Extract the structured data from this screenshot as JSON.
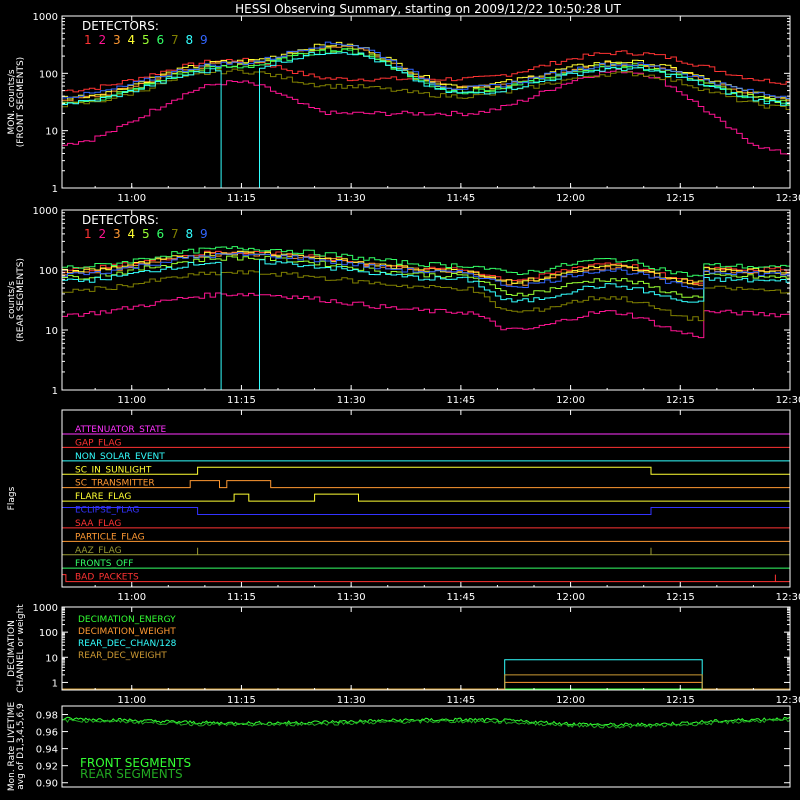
{
  "title": "HESSI Observing Summary, starting on 2009/12/22 10:50:28 UT",
  "colors": {
    "det": [
      "#ff2a2a",
      "#ff3f3f",
      "#ff9933",
      "#ffff33",
      "#99ff33",
      "#33ff66",
      "#33cc33",
      "#33ffff",
      "#3366ff",
      "#5555ff"
    ],
    "axis": "#ffffff"
  },
  "chart_data": [
    {
      "type": "line",
      "ylabel": [
        "MON. counts/s",
        "(FRONT SEGMENTS)"
      ],
      "yscale": "log",
      "ylim": [
        1,
        1000
      ],
      "yticks": [
        "1",
        "10",
        "100",
        "1000"
      ],
      "xlim": [
        "10:50:28",
        "12:30:00"
      ],
      "xticks": [
        "11:00",
        "11:15",
        "11:30",
        "11:45",
        "12:00",
        "12:15",
        "12:30"
      ],
      "legend": {
        "title": "DETECTORS:",
        "labels": [
          "1",
          "2",
          "3",
          "4",
          "5",
          "6",
          "7",
          "8",
          "9"
        ],
        "placement": "top-left"
      },
      "series": [
        {
          "name": "1",
          "color": "#ff3333",
          "base": [
            0.8,
            0.2
          ],
          "points": [
            [
              "10:50",
              50
            ],
            [
              "11:14",
              170
            ],
            [
              "11:28",
              80
            ],
            [
              "11:45",
              80
            ],
            [
              "12:07",
              230
            ],
            [
              "12:30",
              70
            ]
          ]
        },
        {
          "name": "2",
          "color": "#ff1493",
          "points": [
            [
              "10:50",
              6
            ],
            [
              "11:14",
              70
            ],
            [
              "11:28",
              20
            ],
            [
              "11:45",
              20
            ],
            [
              "12:07",
              110
            ],
            [
              "12:30",
              4
            ]
          ]
        },
        {
          "name": "3",
          "color": "#ff9933",
          "points": [
            [
              "10:50",
              35
            ],
            [
              "11:14",
              150
            ],
            [
              "11:28",
              300
            ],
            [
              "11:45",
              55
            ],
            [
              "12:07",
              150
            ],
            [
              "12:30",
              35
            ]
          ]
        },
        {
          "name": "4",
          "color": "#ffff33",
          "points": [
            [
              "10:50",
              38
            ],
            [
              "11:14",
              160
            ],
            [
              "11:28",
              320
            ],
            [
              "11:45",
              60
            ],
            [
              "12:07",
              160
            ],
            [
              "12:30",
              38
            ]
          ]
        },
        {
          "name": "5",
          "color": "#99ff33",
          "points": [
            [
              "10:50",
              32
            ],
            [
              "11:14",
              140
            ],
            [
              "11:28",
              260
            ],
            [
              "11:45",
              50
            ],
            [
              "12:07",
              140
            ],
            [
              "12:30",
              32
            ]
          ]
        },
        {
          "name": "6",
          "color": "#33ff66",
          "points": [
            [
              "10:50",
              30
            ],
            [
              "11:14",
              130
            ],
            [
              "11:28",
              250
            ],
            [
              "11:45",
              48
            ],
            [
              "12:07",
              130
            ],
            [
              "12:30",
              30
            ]
          ]
        },
        {
          "name": "7",
          "color": "#808000",
          "points": [
            [
              "10:50",
              28
            ],
            [
              "11:14",
              110
            ],
            [
              "11:28",
              60
            ],
            [
              "11:45",
              40
            ],
            [
              "12:07",
              100
            ],
            [
              "12:30",
              25
            ]
          ]
        },
        {
          "name": "8",
          "color": "#33ffff",
          "points": [
            [
              "10:50",
              30
            ],
            [
              "11:14",
              120
            ],
            [
              "11:28",
              240
            ],
            [
              "11:45",
              45
            ],
            [
              "12:07",
              120
            ],
            [
              "12:30",
              30
            ]
          ],
          "dropout": [
            [
              "11:12",
              1
            ],
            [
              "11:17",
              1
            ]
          ]
        },
        {
          "name": "9",
          "color": "#3366ff",
          "points": [
            [
              "10:50",
              40
            ],
            [
              "11:14",
              150
            ],
            [
              "11:28",
              330
            ],
            [
              "11:45",
              55
            ],
            [
              "12:07",
              145
            ],
            [
              "12:30",
              40
            ]
          ]
        }
      ]
    },
    {
      "type": "line",
      "ylabel": [
        "counts/s",
        "(REAR SEGMENTS)"
      ],
      "yscale": "log",
      "ylim": [
        1,
        1000
      ],
      "yticks": [
        "1",
        "10",
        "100",
        "1000"
      ],
      "xlim": [
        "10:50:28",
        "12:30:00"
      ],
      "xticks": [
        "11:00",
        "11:15",
        "11:30",
        "11:45",
        "12:00",
        "12:15",
        "12:30"
      ],
      "legend": {
        "title": "DETECTORS:",
        "labels": [
          "1",
          "2",
          "3",
          "4",
          "5",
          "6",
          "7",
          "8",
          "9"
        ],
        "placement": "top-left"
      },
      "series": [
        {
          "name": "1",
          "color": "#ff3333",
          "points": [
            [
              "10:50",
              100
            ],
            [
              "11:14",
              200
            ],
            [
              "11:45",
              100
            ],
            [
              "11:52",
              70
            ],
            [
              "12:05",
              130
            ],
            [
              "12:18",
              60
            ],
            [
              "12:18",
              110
            ],
            [
              "12:30",
              100
            ]
          ]
        },
        {
          "name": "2",
          "color": "#ff1493",
          "points": [
            [
              "10:50",
              18
            ],
            [
              "11:14",
              40
            ],
            [
              "11:45",
              20
            ],
            [
              "11:52",
              10
            ],
            [
              "12:05",
              20
            ],
            [
              "12:18",
              8
            ],
            [
              "12:18",
              20
            ],
            [
              "12:30",
              18
            ]
          ]
        },
        {
          "name": "3",
          "color": "#ff9933",
          "points": [
            [
              "10:50",
              90
            ],
            [
              "11:14",
              190
            ],
            [
              "11:45",
              95
            ],
            [
              "11:52",
              60
            ],
            [
              "12:05",
              110
            ],
            [
              "12:18",
              60
            ],
            [
              "12:18",
              100
            ],
            [
              "12:30",
              90
            ]
          ]
        },
        {
          "name": "4",
          "color": "#ffff33",
          "points": [
            [
              "10:50",
              95
            ],
            [
              "11:14",
              195
            ],
            [
              "11:45",
              98
            ],
            [
              "11:52",
              65
            ],
            [
              "12:05",
              115
            ],
            [
              "12:18",
              62
            ],
            [
              "12:18",
              105
            ],
            [
              "12:30",
              95
            ]
          ]
        },
        {
          "name": "5",
          "color": "#99ff33",
          "points": [
            [
              "10:50",
              75
            ],
            [
              "11:14",
              160
            ],
            [
              "11:45",
              80
            ],
            [
              "11:52",
              40
            ],
            [
              "12:05",
              70
            ],
            [
              "12:18",
              35
            ],
            [
              "12:18",
              80
            ],
            [
              "12:30",
              75
            ]
          ]
        },
        {
          "name": "6",
          "color": "#33ff66",
          "points": [
            [
              "10:50",
              110
            ],
            [
              "11:14",
              230
            ],
            [
              "11:45",
              120
            ],
            [
              "11:52",
              90
            ],
            [
              "12:05",
              150
            ],
            [
              "12:18",
              80
            ],
            [
              "12:18",
              120
            ],
            [
              "12:30",
              110
            ]
          ]
        },
        {
          "name": "7",
          "color": "#808000",
          "points": [
            [
              "10:50",
              45
            ],
            [
              "11:14",
              90
            ],
            [
              "11:45",
              50
            ],
            [
              "11:52",
              20
            ],
            [
              "12:05",
              35
            ],
            [
              "12:18",
              15
            ],
            [
              "12:18",
              50
            ],
            [
              "12:30",
              45
            ]
          ]
        },
        {
          "name": "8",
          "color": "#33ffff",
          "points": [
            [
              "10:50",
              65
            ],
            [
              "11:14",
              140
            ],
            [
              "11:45",
              70
            ],
            [
              "11:52",
              30
            ],
            [
              "12:05",
              55
            ],
            [
              "12:18",
              28
            ],
            [
              "12:18",
              70
            ],
            [
              "12:30",
              65
            ]
          ],
          "dropout": [
            [
              "11:12",
              1
            ],
            [
              "11:17",
              1
            ]
          ]
        },
        {
          "name": "9",
          "color": "#3366ff",
          "points": [
            [
              "10:50",
              85
            ],
            [
              "11:14",
              180
            ],
            [
              "11:45",
              90
            ],
            [
              "11:52",
              55
            ],
            [
              "12:05",
              100
            ],
            [
              "12:18",
              50
            ],
            [
              "12:18",
              95
            ],
            [
              "12:30",
              85
            ]
          ]
        }
      ]
    },
    {
      "type": "line",
      "ylabel": [
        "Flags"
      ],
      "xlim": [
        "10:50:28",
        "12:30:00"
      ],
      "xticks": [
        "11:00",
        "11:15",
        "11:30",
        "11:45",
        "12:00",
        "12:15",
        "12:30"
      ],
      "flags": [
        {
          "name": "ATTENUATOR_STATE",
          "color": "#ff33ff",
          "steps": []
        },
        {
          "name": "GAP_FLAG",
          "color": "#ff3333",
          "steps": []
        },
        {
          "name": "NON_SOLAR_EVENT",
          "color": "#33ffff",
          "steps": []
        },
        {
          "name": "SC_IN_SUNLIGHT",
          "color": "#ffff33",
          "steps": [
            [
              "10:50",
              0
            ],
            [
              "11:09",
              1
            ],
            [
              "12:11",
              0
            ]
          ]
        },
        {
          "name": "SC_TRANSMITTER",
          "color": "#ff9933",
          "steps": [
            [
              "10:50",
              0
            ],
            [
              "11:08",
              1
            ],
            [
              "11:12",
              0
            ],
            [
              "11:13",
              1
            ],
            [
              "11:19",
              0
            ]
          ]
        },
        {
          "name": "FLARE_FLAG",
          "color": "#ffff33",
          "steps": [
            [
              "10:50",
              0
            ],
            [
              "11:14",
              1
            ],
            [
              "11:16",
              0
            ],
            [
              "11:25",
              1
            ],
            [
              "11:31",
              0
            ]
          ]
        },
        {
          "name": "ECLIPSE_FLAG",
          "color": "#3333ff",
          "steps": [
            [
              "10:50",
              1
            ],
            [
              "11:09",
              0
            ],
            [
              "12:11",
              1
            ]
          ]
        },
        {
          "name": "SAA_FLAG",
          "color": "#ff3333",
          "steps": []
        },
        {
          "name": "PARTICLE_FLAG",
          "color": "#ff9933",
          "steps": []
        },
        {
          "name": "AAZ_FLAG",
          "color": "#999933",
          "steps": [
            [
              "10:50",
              0
            ],
            [
              "11:09",
              1
            ],
            [
              "11:09",
              0
            ],
            [
              "12:11",
              1
            ],
            [
              "12:11",
              0
            ]
          ]
        },
        {
          "name": "FRONTS_OFF",
          "color": "#33ff66",
          "steps": []
        },
        {
          "name": "BAD_PACKETS",
          "color": "#ff3333",
          "steps": [
            [
              "10:50",
              1
            ],
            [
              "10:51",
              0
            ],
            [
              "12:28",
              1
            ],
            [
              "12:28",
              0
            ]
          ]
        }
      ]
    },
    {
      "type": "line",
      "ylabel": [
        "DECIMATION",
        "CHANNEL or weight"
      ],
      "yscale": "log",
      "ylim": [
        0.5,
        1000
      ],
      "yticks": [
        "1",
        "10",
        "100",
        "1000"
      ],
      "xlim": [
        "10:50:28",
        "12:30:00"
      ],
      "xticks": [
        "11:00",
        "11:15",
        "11:30",
        "11:45",
        "12:00",
        "12:15",
        "12:30"
      ],
      "series": [
        {
          "name": "DECIMATION_ENERGY",
          "color": "#33ff33",
          "points": [
            [
              "10:50",
              0.5
            ],
            [
              "12:30",
              0.5
            ]
          ]
        },
        {
          "name": "DECIMATION_WEIGHT",
          "color": "#ff9933",
          "points": [
            [
              "10:50",
              0.5
            ],
            [
              "11:51",
              0.5
            ],
            [
              "11:51",
              1
            ],
            [
              "12:18",
              1
            ],
            [
              "12:18",
              0.5
            ],
            [
              "12:30",
              0.5
            ]
          ]
        },
        {
          "name": "REAR_DEC_CHAN/128",
          "color": "#33ffff",
          "points": [
            [
              "10:50",
              0.5
            ],
            [
              "11:51",
              0.5
            ],
            [
              "11:51",
              8
            ],
            [
              "12:18",
              8
            ],
            [
              "12:18",
              0.5
            ],
            [
              "12:30",
              0.5
            ]
          ]
        },
        {
          "name": "REAR_DEC_WEIGHT",
          "color": "#cc9933",
          "points": [
            [
              "10:50",
              0.5
            ],
            [
              "11:51",
              0.5
            ],
            [
              "11:51",
              2
            ],
            [
              "12:18",
              2
            ],
            [
              "12:18",
              0.5
            ],
            [
              "12:30",
              0.5
            ]
          ]
        }
      ]
    },
    {
      "type": "line",
      "ylabel": [
        "Mon. Rate LIVETIME",
        "avg of D1,3,4,5,6,9"
      ],
      "ylim": [
        0.895,
        0.99
      ],
      "yticks": [
        "0.90",
        "0.92",
        "0.94",
        "0.96",
        "0.98"
      ],
      "xlim": [
        "10:50:28",
        "12:30:00"
      ],
      "series": [
        {
          "name": "FRONT SEGMENTS",
          "color": "#33ff33",
          "points": [
            [
              "10:50",
              0.975
            ],
            [
              "11:15",
              0.97
            ],
            [
              "11:45",
              0.974
            ],
            [
              "12:07",
              0.968
            ],
            [
              "12:30",
              0.975
            ]
          ]
        },
        {
          "name": "REAR SEGMENTS",
          "color": "#22aa22",
          "points": [
            [
              "10:50",
              0.973
            ],
            [
              "11:15",
              0.968
            ],
            [
              "11:45",
              0.972
            ],
            [
              "12:07",
              0.966
            ],
            [
              "12:30",
              0.973
            ]
          ]
        }
      ]
    }
  ]
}
